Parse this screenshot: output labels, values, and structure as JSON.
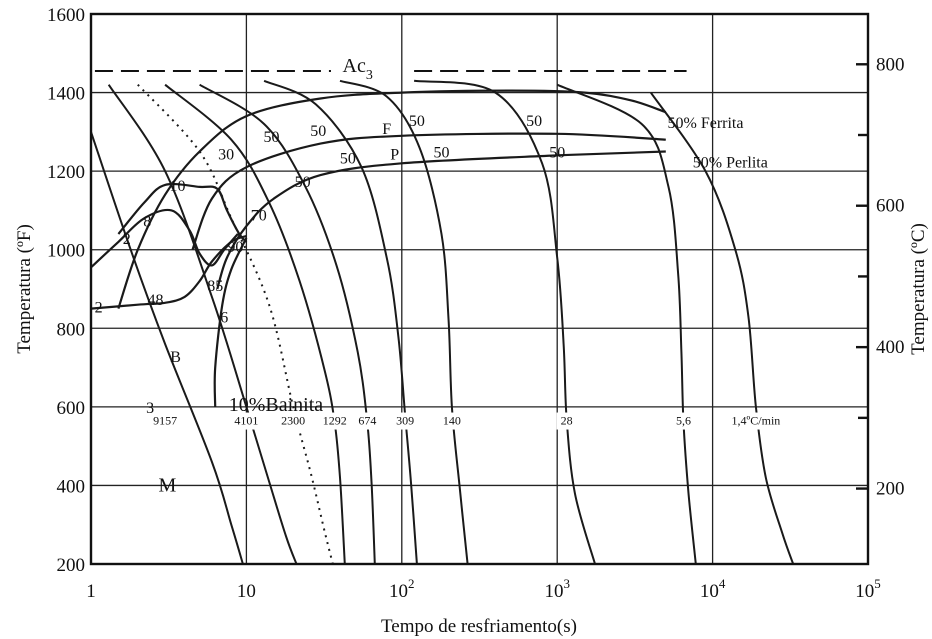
{
  "chart_data": {
    "type": "line",
    "xlabel": "Tempo de resfriamento(s)",
    "ylabel_left": "Temperatura (ºF)",
    "ylabel_right": "Temperatura (ºC)",
    "x_scale": "log",
    "xlim": [
      1,
      100000
    ],
    "ylim_F": [
      200,
      1600
    ],
    "x_tick_labels": [
      {
        "base": "1",
        "exp": ""
      },
      {
        "base": "10",
        "exp": ""
      },
      {
        "base": "10",
        "exp": "2"
      },
      {
        "base": "10",
        "exp": "3"
      },
      {
        "base": "10",
        "exp": "4"
      },
      {
        "base": "10",
        "exp": "5"
      }
    ],
    "y_ticks_F": [
      200,
      400,
      600,
      800,
      1000,
      1200,
      1400,
      1600
    ],
    "y_tick_labels_F": [
      "200",
      "400",
      "600",
      "800",
      "1000",
      "1200",
      "1400",
      "1600"
    ],
    "y_ticks_C": [
      200,
      400,
      600,
      800
    ],
    "y_tick_labels_C": [
      "200",
      "400",
      "600",
      "800"
    ],
    "grid": true,
    "ac3": {
      "label_main": "Ac",
      "label_sub": "3",
      "temperature_F": 1455
    },
    "cooling_rates": [
      {
        "label": "9157",
        "points": [
          [
            1,
            1300
          ],
          [
            1.8,
            1000
          ],
          [
            3,
            760
          ],
          [
            6,
            460
          ],
          [
            8,
            300
          ],
          [
            9.5,
            200
          ]
        ]
      },
      {
        "label": "4101",
        "points": [
          [
            1.3,
            1420
          ],
          [
            3,
            1200
          ],
          [
            6,
            880
          ],
          [
            10,
            600
          ],
          [
            14,
            410
          ],
          [
            18,
            270
          ],
          [
            21,
            200
          ]
        ]
      },
      {
        "label": "2300",
        "points": [
          [
            2,
            1420
          ],
          [
            5,
            1250
          ],
          [
            8,
            1080
          ],
          [
            14,
            860
          ],
          [
            20,
            600
          ],
          [
            26,
            430
          ],
          [
            32,
            280
          ],
          [
            36,
            200
          ]
        ]
      },
      {
        "label": "1292",
        "points": [
          [
            3,
            1420
          ],
          [
            8,
            1280
          ],
          [
            14,
            1120
          ],
          [
            22,
            920
          ],
          [
            32,
            690
          ],
          [
            37,
            560
          ],
          [
            40,
            420
          ],
          [
            43,
            200
          ]
        ]
      },
      {
        "label": "674",
        "points": [
          [
            5,
            1420
          ],
          [
            13,
            1320
          ],
          [
            24,
            1160
          ],
          [
            38,
            960
          ],
          [
            52,
            740
          ],
          [
            60,
            560
          ],
          [
            64,
            400
          ],
          [
            67,
            200
          ]
        ]
      },
      {
        "label": "309",
        "points": [
          [
            13,
            1430
          ],
          [
            28,
            1370
          ],
          [
            55,
            1210
          ],
          [
            80,
            980
          ],
          [
            95,
            780
          ],
          [
            105,
            580
          ],
          [
            115,
            400
          ],
          [
            125,
            200
          ]
        ]
      },
      {
        "label": "140",
        "points": [
          [
            40,
            1430
          ],
          [
            80,
            1390
          ],
          [
            130,
            1260
          ],
          [
            180,
            1040
          ],
          [
            200,
            820
          ],
          [
            210,
            600
          ],
          [
            235,
            400
          ],
          [
            265,
            200
          ]
        ]
      },
      {
        "label": "28",
        "points": [
          [
            120,
            1430
          ],
          [
            400,
            1400
          ],
          [
            800,
            1220
          ],
          [
            1000,
            980
          ],
          [
            1100,
            760
          ],
          [
            1150,
            570
          ],
          [
            1300,
            380
          ],
          [
            1750,
            200
          ]
        ]
      },
      {
        "label": "5,6",
        "points": [
          [
            1000,
            1420
          ],
          [
            3500,
            1320
          ],
          [
            5200,
            1160
          ],
          [
            6000,
            940
          ],
          [
            6300,
            740
          ],
          [
            6500,
            560
          ],
          [
            7000,
            380
          ],
          [
            7800,
            200
          ]
        ]
      },
      {
        "label": "1,4ºC/min",
        "points": [
          [
            4000,
            1400
          ],
          [
            9000,
            1200
          ],
          [
            14000,
            1000
          ],
          [
            17000,
            830
          ],
          [
            19000,
            600
          ],
          [
            22000,
            420
          ],
          [
            28000,
            280
          ],
          [
            33000,
            200
          ]
        ]
      }
    ],
    "transformation_curves": [
      {
        "name": "50% Ferrita",
        "points": [
          [
            1.5,
            850
          ],
          [
            2,
            1000
          ],
          [
            3,
            1140
          ],
          [
            5,
            1250
          ],
          [
            10,
            1340
          ],
          [
            30,
            1385
          ],
          [
            100,
            1400
          ],
          [
            500,
            1405
          ],
          [
            1500,
            1400
          ],
          [
            3000,
            1380
          ],
          [
            5000,
            1350
          ]
        ]
      },
      {
        "name": "50% Perlita",
        "points": [
          [
            6.5,
            900
          ],
          [
            7.5,
            980
          ],
          [
            10,
            1060
          ],
          [
            15,
            1130
          ],
          [
            30,
            1190
          ],
          [
            100,
            1220
          ],
          [
            1000,
            1240
          ],
          [
            5000,
            1250
          ]
        ]
      },
      {
        "name": "",
        "points": [
          [
            4.5,
            1000
          ],
          [
            6,
            1130
          ],
          [
            10,
            1210
          ],
          [
            30,
            1270
          ],
          [
            100,
            1290
          ],
          [
            1000,
            1295
          ],
          [
            5000,
            1280
          ]
        ]
      },
      {
        "name": "",
        "points": [
          [
            1,
            955
          ],
          [
            1.5,
            1020
          ],
          [
            2.2,
            1080
          ],
          [
            3.3,
            1100
          ],
          [
            4.3,
            1050
          ],
          [
            5,
            990
          ],
          [
            6,
            960
          ],
          [
            7.2,
            1000
          ],
          [
            8.8,
            1040
          ]
        ]
      },
      {
        "name": "",
        "points": [
          [
            1.5,
            1040
          ],
          [
            2.2,
            1120
          ],
          [
            3,
            1165
          ],
          [
            5,
            1160
          ],
          [
            6.5,
            1155
          ],
          [
            7.5,
            1100
          ],
          [
            9,
            1040
          ],
          [
            10,
            1020
          ]
        ]
      },
      {
        "name": "",
        "points": [
          [
            1,
            850
          ],
          [
            2,
            860
          ],
          [
            3,
            865
          ],
          [
            4,
            880
          ],
          [
            5,
            920
          ],
          [
            6,
            970
          ],
          [
            8,
            1020
          ],
          [
            10,
            1035
          ]
        ]
      },
      {
        "name": "10%Bainita",
        "points": [
          [
            6.3,
            600
          ],
          [
            6.3,
            700
          ],
          [
            7,
            860
          ],
          [
            8,
            950
          ],
          [
            10,
            1030
          ]
        ]
      }
    ],
    "annotations": [
      {
        "text": "F",
        "x": 80,
        "y": 1310
      },
      {
        "text": "P",
        "x": 90,
        "y": 1245
      },
      {
        "text": "B",
        "x": 3.5,
        "y": 730
      },
      {
        "text": "M",
        "x": 3.1,
        "y": 400
      },
      {
        "text": "10%Bainita",
        "x": 15.5,
        "y": 605
      },
      {
        "text": "2",
        "x": 1.12,
        "y": 855
      },
      {
        "text": "2",
        "x": 1.7,
        "y": 1030
      },
      {
        "text": "8",
        "x": 2.3,
        "y": 1075
      },
      {
        "text": "10",
        "x": 3.6,
        "y": 1165
      },
      {
        "text": "30",
        "x": 7.4,
        "y": 1245
      },
      {
        "text": "50",
        "x": 14.5,
        "y": 1290
      },
      {
        "text": "50",
        "x": 29,
        "y": 1305
      },
      {
        "text": "50",
        "x": 23,
        "y": 1175
      },
      {
        "text": "50",
        "x": 45,
        "y": 1235
      },
      {
        "text": "50",
        "x": 125,
        "y": 1330
      },
      {
        "text": "50",
        "x": 180,
        "y": 1250
      },
      {
        "text": "50",
        "x": 710,
        "y": 1330
      },
      {
        "text": "50",
        "x": 1000,
        "y": 1250
      },
      {
        "text": "70",
        "x": 12,
        "y": 1090
      },
      {
        "text": "90",
        "x": 8.5,
        "y": 1010
      },
      {
        "text": "85",
        "x": 6.3,
        "y": 910
      },
      {
        "text": "48",
        "x": 2.6,
        "y": 875
      },
      {
        "text": "6",
        "x": 7.2,
        "y": 830
      },
      {
        "text": "3",
        "x": 2.4,
        "y": 600
      },
      {
        "text": "50% Ferrita",
        "x": 9000,
        "y": 1325
      },
      {
        "text": "50% Perlita",
        "x": 13000,
        "y": 1225
      }
    ]
  }
}
